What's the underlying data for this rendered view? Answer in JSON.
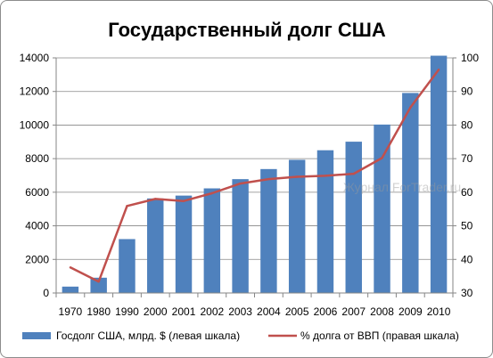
{
  "chart_data": {
    "type": "bar",
    "title": "Государственный долг США",
    "categories": [
      "1970",
      "1980",
      "1990",
      "2000",
      "2001",
      "2002",
      "2003",
      "2004",
      "2005",
      "2006",
      "2007",
      "2008",
      "2009",
      "2010"
    ],
    "series": [
      {
        "name": "Госдолг США, млрд. $ (левая шкала)",
        "type": "bar",
        "axis": "left",
        "color": "#4f81bd",
        "values": [
          380,
          910,
          3210,
          5630,
          5800,
          6230,
          6780,
          7380,
          7930,
          8500,
          9010,
          10030,
          11910,
          14130
        ]
      },
      {
        "name": "% долга от ВВП (правая шкала)",
        "type": "line",
        "axis": "right",
        "color": "#c0504d",
        "values": [
          37.6,
          33.4,
          55.9,
          58.0,
          57.4,
          59.7,
          62.6,
          63.9,
          64.6,
          64.9,
          65.5,
          70.2,
          85.2,
          96.5
        ]
      }
    ],
    "ylim_left": [
      0,
      14000
    ],
    "yticks_left": [
      "0",
      "2000",
      "4000",
      "6000",
      "8000",
      "10000",
      "12000",
      "14000"
    ],
    "ylim_right": [
      30,
      100
    ],
    "yticks_right": [
      "30",
      "40",
      "50",
      "60",
      "70",
      "80",
      "90",
      "100"
    ],
    "grid": true,
    "legend": "bottom",
    "watermark": "Журнал ForTrader.ru"
  }
}
